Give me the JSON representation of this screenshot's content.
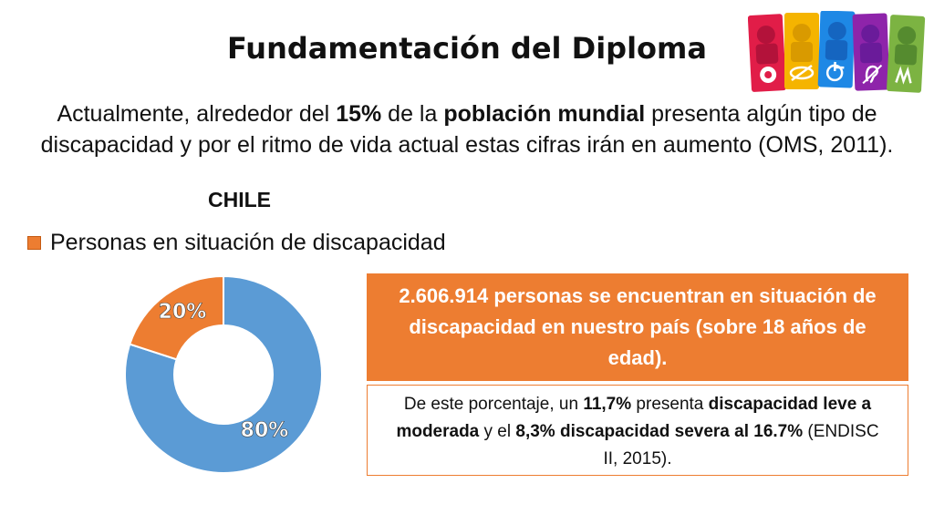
{
  "title": "Fundamentación del Diploma",
  "intro": {
    "p1": "Actualmente, alrededor del ",
    "b1": "15%",
    "p2": " de la ",
    "b2": "población mundial",
    "p3": " presenta algún tipo de discapacidad y por el ritmo de vida actual estas cifras irán en aumento (OMS, 2011)."
  },
  "country": "CHILE",
  "legend": {
    "label": "Personas en situación de discapacidad",
    "color": "#ed7d31"
  },
  "chart_data": {
    "type": "pie",
    "variant": "donut",
    "slices": [
      {
        "label": "80%",
        "value": 80,
        "color": "#5b9bd5"
      },
      {
        "label": "20%",
        "value": 20,
        "color": "#ed7d31"
      }
    ]
  },
  "box_top": {
    "text": "2.606.914 personas se encuentran en situación de discapacidad en nuestro país (sobre 18 años de edad).",
    "color": "#ed7d31"
  },
  "box_bottom": {
    "t1": "De este porcentaje, un ",
    "b1": "11,7%",
    "t2": " presenta ",
    "b2": "discapacidad leve a moderada",
    "t3": " y el ",
    "b3": "8,3% discapacidad severa al 16.7%",
    "t4": " (ENDISC II, 2015)."
  },
  "accessibility_icons": [
    {
      "name": "cognitive-disability-icon",
      "color": "#e11d48"
    },
    {
      "name": "visual-disability-icon",
      "color": "#f5b400"
    },
    {
      "name": "wheelchair-icon",
      "color": "#1e88e5"
    },
    {
      "name": "hearing-disability-icon",
      "color": "#8e24aa"
    },
    {
      "name": "sign-language-icon",
      "color": "#7cb342"
    }
  ]
}
